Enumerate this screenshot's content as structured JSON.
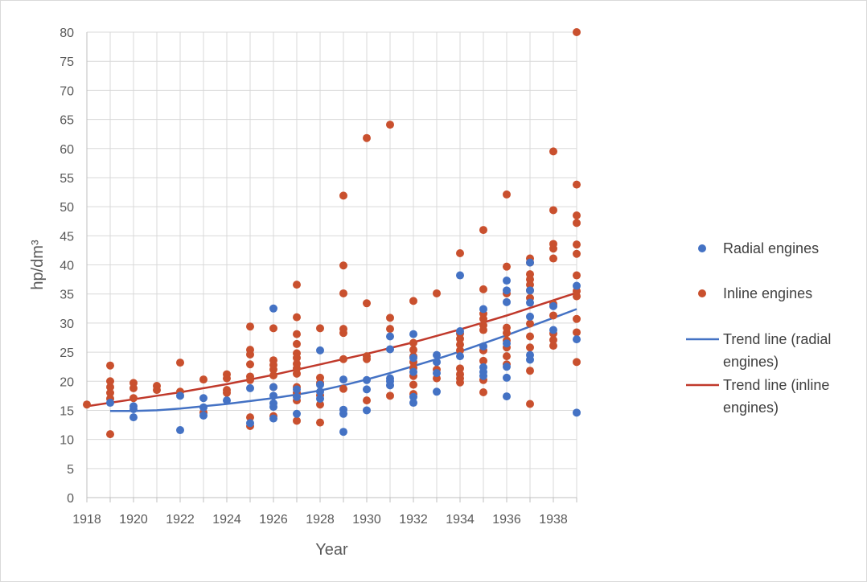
{
  "chart_data": {
    "type": "scatter",
    "title": "",
    "xlabel": "Year",
    "ylabel": "hp/dm³",
    "xlim": [
      1918,
      1939
    ],
    "ylim": [
      0,
      80
    ],
    "x_ticks": [
      "1918",
      "1920",
      "1922",
      "1924",
      "1926",
      "1928",
      "1930",
      "1932",
      "1934",
      "1936",
      "1938"
    ],
    "y_ticks": [
      "0",
      "5",
      "10",
      "15",
      "20",
      "25",
      "30",
      "35",
      "40",
      "45",
      "50",
      "55",
      "60",
      "65",
      "70",
      "75",
      "80"
    ],
    "grid": true,
    "legend_position": "right",
    "series": [
      {
        "name": "Radial engines",
        "kind": "points",
        "color": "#4472c4",
        "points": [
          [
            1919,
            16.3
          ],
          [
            1920,
            13.8
          ],
          [
            1920,
            15.2
          ],
          [
            1920,
            15.7
          ],
          [
            1922,
            11.6
          ],
          [
            1922,
            17.5
          ],
          [
            1923,
            14.1
          ],
          [
            1923,
            15.5
          ],
          [
            1923,
            17.1
          ],
          [
            1924,
            16.7
          ],
          [
            1925,
            12.8
          ],
          [
            1925,
            18.8
          ],
          [
            1926,
            32.5
          ],
          [
            1926,
            13.6
          ],
          [
            1926,
            15.6
          ],
          [
            1926,
            16.2
          ],
          [
            1926,
            17.5
          ],
          [
            1926,
            19.0
          ],
          [
            1927,
            14.4
          ],
          [
            1927,
            17.3
          ],
          [
            1927,
            18.6
          ],
          [
            1928,
            25.3
          ],
          [
            1928,
            17.0
          ],
          [
            1928,
            18.2
          ],
          [
            1928,
            19.4
          ],
          [
            1929,
            11.3
          ],
          [
            1929,
            14.4
          ],
          [
            1929,
            15.1
          ],
          [
            1929,
            20.3
          ],
          [
            1930,
            15.0
          ],
          [
            1930,
            18.6
          ],
          [
            1930,
            20.2
          ],
          [
            1931,
            19.3
          ],
          [
            1931,
            20.0
          ],
          [
            1931,
            20.5
          ],
          [
            1931,
            25.5
          ],
          [
            1931,
            27.7
          ],
          [
            1932,
            16.3
          ],
          [
            1932,
            17.3
          ],
          [
            1932,
            21.6
          ],
          [
            1932,
            24.0
          ],
          [
            1932,
            28.1
          ],
          [
            1933,
            18.2
          ],
          [
            1933,
            21.4
          ],
          [
            1933,
            23.3
          ],
          [
            1933,
            24.5
          ],
          [
            1934,
            38.2
          ],
          [
            1934,
            24.3
          ],
          [
            1934,
            28.6
          ],
          [
            1935,
            20.9
          ],
          [
            1935,
            21.6
          ],
          [
            1935,
            22.4
          ],
          [
            1935,
            26.0
          ],
          [
            1935,
            32.4
          ],
          [
            1936,
            17.4
          ],
          [
            1936,
            20.6
          ],
          [
            1936,
            22.5
          ],
          [
            1936,
            26.5
          ],
          [
            1936,
            33.6
          ],
          [
            1936,
            35.6
          ],
          [
            1936,
            37.3
          ],
          [
            1937,
            23.7
          ],
          [
            1937,
            24.5
          ],
          [
            1937,
            31.1
          ],
          [
            1937,
            33.5
          ],
          [
            1937,
            35.6
          ],
          [
            1937,
            40.4
          ],
          [
            1938,
            28.8
          ],
          [
            1938,
            32.9
          ],
          [
            1939,
            14.6
          ],
          [
            1939,
            27.2
          ],
          [
            1939,
            36.4
          ]
        ]
      },
      {
        "name": "Inline engines",
        "kind": "points",
        "color": "#c9502e",
        "points": [
          [
            1918,
            16.0
          ],
          [
            1919,
            10.9
          ],
          [
            1919,
            17.0
          ],
          [
            1919,
            18.0
          ],
          [
            1919,
            19.0
          ],
          [
            1919,
            20.0
          ],
          [
            1919,
            22.7
          ],
          [
            1920,
            17.1
          ],
          [
            1920,
            18.8
          ],
          [
            1920,
            19.7
          ],
          [
            1921,
            18.5
          ],
          [
            1921,
            19.2
          ],
          [
            1922,
            18.2
          ],
          [
            1922,
            23.2
          ],
          [
            1923,
            14.6
          ],
          [
            1923,
            20.3
          ],
          [
            1924,
            18.0
          ],
          [
            1924,
            18.5
          ],
          [
            1924,
            20.5
          ],
          [
            1924,
            21.2
          ],
          [
            1925,
            12.3
          ],
          [
            1925,
            13.8
          ],
          [
            1925,
            20.2
          ],
          [
            1925,
            20.8
          ],
          [
            1925,
            22.9
          ],
          [
            1925,
            24.6
          ],
          [
            1925,
            25.4
          ],
          [
            1925,
            29.4
          ],
          [
            1926,
            14.0
          ],
          [
            1926,
            19.0
          ],
          [
            1926,
            21.0
          ],
          [
            1926,
            22.0
          ],
          [
            1926,
            22.8
          ],
          [
            1926,
            23.6
          ],
          [
            1926,
            29.1
          ],
          [
            1927,
            13.2
          ],
          [
            1927,
            16.7
          ],
          [
            1927,
            18.0
          ],
          [
            1927,
            19.0
          ],
          [
            1927,
            21.3
          ],
          [
            1927,
            22.2
          ],
          [
            1927,
            23.0
          ],
          [
            1927,
            24.0
          ],
          [
            1927,
            24.8
          ],
          [
            1927,
            26.4
          ],
          [
            1927,
            28.1
          ],
          [
            1927,
            31.0
          ],
          [
            1927,
            36.6
          ],
          [
            1928,
            12.9
          ],
          [
            1928,
            16.0
          ],
          [
            1928,
            17.6
          ],
          [
            1928,
            19.7
          ],
          [
            1928,
            20.6
          ],
          [
            1928,
            29.1
          ],
          [
            1929,
            18.7
          ],
          [
            1929,
            23.8
          ],
          [
            1929,
            28.3
          ],
          [
            1929,
            29.0
          ],
          [
            1929,
            35.1
          ],
          [
            1929,
            39.9
          ],
          [
            1929,
            51.9
          ],
          [
            1930,
            16.7
          ],
          [
            1930,
            23.8
          ],
          [
            1930,
            24.3
          ],
          [
            1930,
            33.4
          ],
          [
            1930,
            61.8
          ],
          [
            1931,
            17.5
          ],
          [
            1931,
            29.0
          ],
          [
            1931,
            30.9
          ],
          [
            1931,
            64.1
          ],
          [
            1932,
            17.8
          ],
          [
            1932,
            19.4
          ],
          [
            1932,
            20.9
          ],
          [
            1932,
            22.3
          ],
          [
            1932,
            23.3
          ],
          [
            1932,
            24.3
          ],
          [
            1932,
            25.4
          ],
          [
            1932,
            26.6
          ],
          [
            1932,
            33.8
          ],
          [
            1933,
            20.5
          ],
          [
            1933,
            22.0
          ],
          [
            1933,
            35.1
          ],
          [
            1934,
            19.8
          ],
          [
            1934,
            20.5
          ],
          [
            1934,
            21.2
          ],
          [
            1934,
            22.2
          ],
          [
            1934,
            25.3
          ],
          [
            1934,
            26.3
          ],
          [
            1934,
            27.3
          ],
          [
            1934,
            28.2
          ],
          [
            1934,
            42.0
          ],
          [
            1935,
            18.1
          ],
          [
            1935,
            20.2
          ],
          [
            1935,
            23.5
          ],
          [
            1935,
            25.3
          ],
          [
            1935,
            28.8
          ],
          [
            1935,
            29.6
          ],
          [
            1935,
            30.7
          ],
          [
            1935,
            31.6
          ],
          [
            1935,
            35.8
          ],
          [
            1935,
            46.0
          ],
          [
            1936,
            22.9
          ],
          [
            1936,
            24.3
          ],
          [
            1936,
            25.8
          ],
          [
            1936,
            27.0
          ],
          [
            1936,
            28.3
          ],
          [
            1936,
            29.2
          ],
          [
            1936,
            35.1
          ],
          [
            1936,
            39.7
          ],
          [
            1936,
            52.1
          ],
          [
            1937,
            16.1
          ],
          [
            1937,
            21.8
          ],
          [
            1937,
            25.8
          ],
          [
            1937,
            27.7
          ],
          [
            1937,
            29.9
          ],
          [
            1937,
            34.3
          ],
          [
            1937,
            35.6
          ],
          [
            1937,
            36.6
          ],
          [
            1937,
            37.5
          ],
          [
            1937,
            38.4
          ],
          [
            1937,
            40.4
          ],
          [
            1937,
            41.1
          ],
          [
            1938,
            26.1
          ],
          [
            1938,
            27.1
          ],
          [
            1938,
            28.2
          ],
          [
            1938,
            31.3
          ],
          [
            1938,
            33.3
          ],
          [
            1938,
            41.1
          ],
          [
            1938,
            42.8
          ],
          [
            1938,
            43.6
          ],
          [
            1938,
            49.4
          ],
          [
            1938,
            59.5
          ],
          [
            1939,
            23.3
          ],
          [
            1939,
            28.4
          ],
          [
            1939,
            30.7
          ],
          [
            1939,
            34.6
          ],
          [
            1939,
            35.5
          ],
          [
            1939,
            38.2
          ],
          [
            1939,
            41.9
          ],
          [
            1939,
            43.5
          ],
          [
            1939,
            47.2
          ],
          [
            1939,
            48.5
          ],
          [
            1939,
            53.8
          ],
          [
            1939,
            80.0
          ]
        ]
      },
      {
        "name": "Trend line (radial engines)",
        "kind": "line",
        "color": "#4472c4",
        "points": [
          [
            1919,
            14.9
          ],
          [
            1920,
            14.9
          ],
          [
            1921,
            15.0
          ],
          [
            1922,
            15.3
          ],
          [
            1923,
            15.7
          ],
          [
            1924,
            16.1
          ],
          [
            1925,
            16.6
          ],
          [
            1926,
            17.1
          ],
          [
            1927,
            17.7
          ],
          [
            1928,
            18.4
          ],
          [
            1929,
            19.3
          ],
          [
            1930,
            20.3
          ],
          [
            1931,
            21.4
          ],
          [
            1932,
            22.6
          ],
          [
            1933,
            23.8
          ],
          [
            1934,
            25.1
          ],
          [
            1935,
            26.5
          ],
          [
            1936,
            27.9
          ],
          [
            1937,
            29.4
          ],
          [
            1938,
            30.9
          ],
          [
            1939,
            32.4
          ]
        ]
      },
      {
        "name": "Trend line (inline engines)",
        "kind": "line",
        "color": "#c0392b",
        "points": [
          [
            1918,
            15.7
          ],
          [
            1919,
            16.3
          ],
          [
            1920,
            16.9
          ],
          [
            1921,
            17.5
          ],
          [
            1922,
            18.1
          ],
          [
            1923,
            18.8
          ],
          [
            1924,
            19.5
          ],
          [
            1925,
            20.3
          ],
          [
            1926,
            21.1
          ],
          [
            1927,
            22.0
          ],
          [
            1928,
            22.9
          ],
          [
            1929,
            23.8
          ],
          [
            1930,
            24.7
          ],
          [
            1931,
            25.7
          ],
          [
            1932,
            26.7
          ],
          [
            1933,
            27.8
          ],
          [
            1934,
            28.9
          ],
          [
            1935,
            30.1
          ],
          [
            1936,
            31.3
          ],
          [
            1937,
            32.6
          ],
          [
            1938,
            33.9
          ],
          [
            1939,
            35.2
          ]
        ]
      }
    ]
  },
  "legend": [
    {
      "lines": [
        "Radial engines"
      ],
      "marker": "dot",
      "color": "#4472c4"
    },
    {
      "lines": [
        "Inline engines"
      ],
      "marker": "dot",
      "color": "#c9502e"
    },
    {
      "lines": [
        "Trend line (radial",
        "engines)"
      ],
      "marker": "line",
      "color": "#4472c4"
    },
    {
      "lines": [
        "Trend line (inline",
        "engines)"
      ],
      "marker": "line",
      "color": "#c0392b"
    }
  ]
}
